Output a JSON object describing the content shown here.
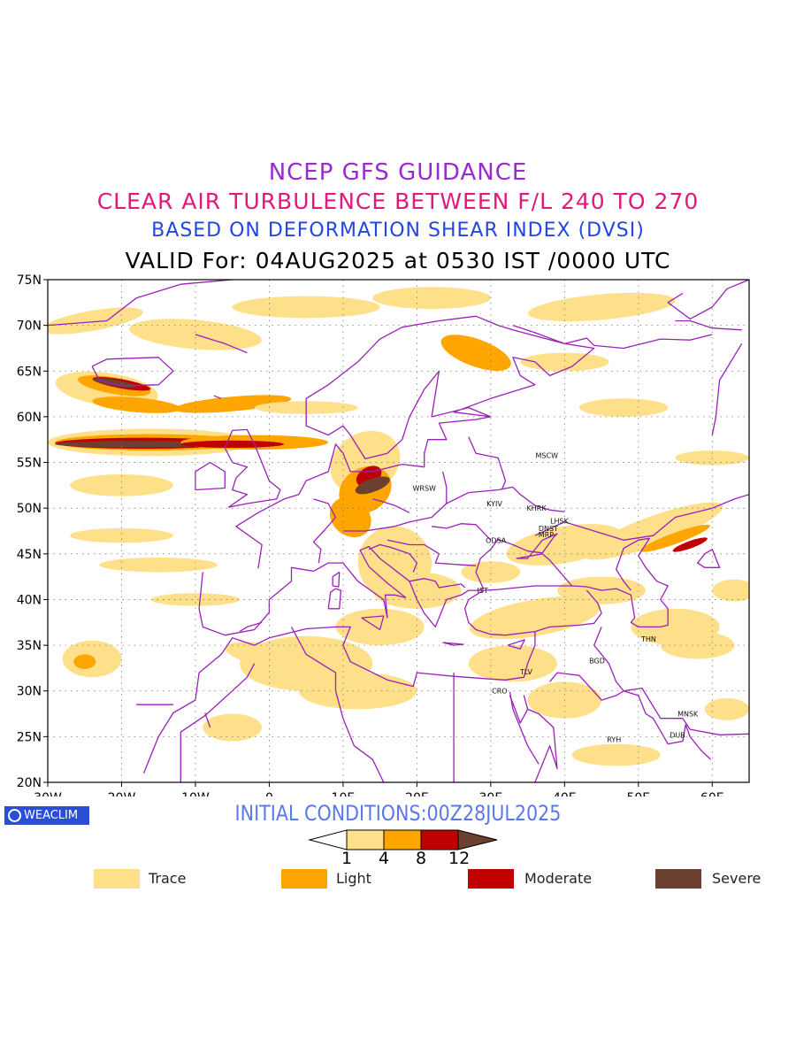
{
  "titles": {
    "line1": "NCEP GFS GUIDANCE",
    "line2": "CLEAR AIR TURBULENCE BETWEEN F/L 240 TO 270",
    "line3": "BASED ON DEFORMATION SHEAR INDEX (DVSI)",
    "line4": "VALID For: 04AUG2025 at 0530 IST /0000 UTC"
  },
  "map": {
    "lat_ticks": [
      "75N",
      "70N",
      "65N",
      "60N",
      "55N",
      "50N",
      "45N",
      "40N",
      "35N",
      "30N",
      "25N",
      "20N"
    ],
    "lon_ticks": [
      "30W",
      "20W",
      "10W",
      "0",
      "10E",
      "20E",
      "30E",
      "40E",
      "50E",
      "60E"
    ],
    "lon_range": [
      -30,
      65
    ],
    "lat_range": [
      20,
      75
    ],
    "cities": [
      {
        "name": "MSCW",
        "lon": 37.6,
        "lat": 55.8
      },
      {
        "name": "WRSW",
        "lon": 21.0,
        "lat": 52.2
      },
      {
        "name": "KYIV",
        "lon": 30.5,
        "lat": 50.5
      },
      {
        "name": "KHRK",
        "lon": 36.2,
        "lat": 50.0
      },
      {
        "name": "LHSK",
        "lon": 39.3,
        "lat": 48.6
      },
      {
        "name": "DNST",
        "lon": 37.8,
        "lat": 47.8
      },
      {
        "name": "MRP",
        "lon": 37.5,
        "lat": 47.1
      },
      {
        "name": "ODSA",
        "lon": 30.7,
        "lat": 46.5
      },
      {
        "name": "IST",
        "lon": 28.9,
        "lat": 41.0
      },
      {
        "name": "THN",
        "lon": 51.4,
        "lat": 35.7
      },
      {
        "name": "BGD",
        "lon": 44.4,
        "lat": 33.3
      },
      {
        "name": "TLV",
        "lon": 34.8,
        "lat": 32.1
      },
      {
        "name": "CRO",
        "lon": 31.2,
        "lat": 30.0
      },
      {
        "name": "MNSK",
        "lon": 56.7,
        "lat": 27.5
      },
      {
        "name": "DUB",
        "lon": 55.3,
        "lat": 25.2
      },
      {
        "name": "RYH",
        "lon": 46.7,
        "lat": 24.7
      }
    ]
  },
  "badge": {
    "label": "WEACLIM"
  },
  "initial_conditions": "INITIAL CONDITIONS:00Z28JUL2025",
  "colorbar": {
    "labels": [
      "1",
      "4",
      "8",
      "12"
    ],
    "colors": [
      "#ffffff",
      "#ffe08a",
      "#ffa500",
      "#c00000",
      "#6b4030"
    ]
  },
  "legend": [
    {
      "label": "Trace",
      "color": "#ffe08a"
    },
    {
      "label": "Light",
      "color": "#ffa500"
    },
    {
      "label": "Moderate",
      "color": "#c00000"
    },
    {
      "label": "Severe",
      "color": "#6b4030"
    }
  ]
}
